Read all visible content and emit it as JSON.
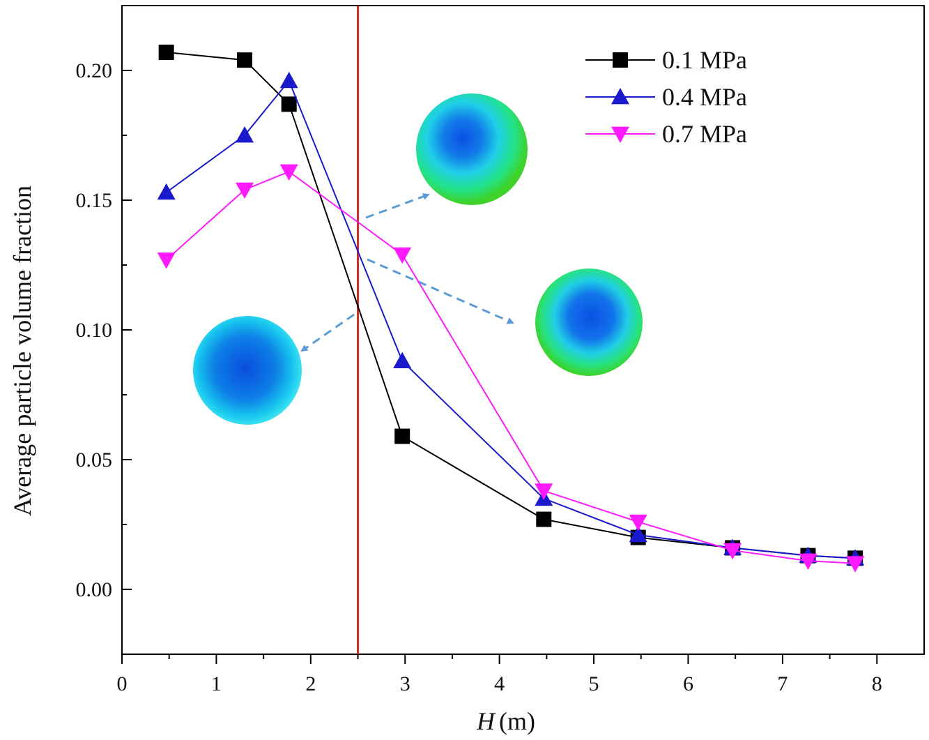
{
  "chart_data": {
    "type": "line",
    "title": "",
    "xlabel": "H",
    "xlabel_unit": "(m)",
    "ylabel": "Average particle volume fraction",
    "xlim": [
      0,
      8.5
    ],
    "ylim": [
      -0.025,
      0.225
    ],
    "x_ticks": [
      "0",
      "1",
      "2",
      "3",
      "4",
      "5",
      "6",
      "7",
      "8"
    ],
    "y_ticks": [
      "0.00",
      "0.05",
      "0.10",
      "0.15",
      "0.20"
    ],
    "grid": false,
    "legend_position": "top-right",
    "vertical_line": {
      "x": 2.5,
      "color": "#d42a2a"
    },
    "x": [
      0.47,
      1.3,
      1.77,
      2.97,
      4.47,
      5.47,
      6.47,
      7.27,
      7.77
    ],
    "series": [
      {
        "name": "0.1 MPa",
        "color": "#000000",
        "marker": "square",
        "values": [
          0.207,
          0.204,
          0.187,
          0.059,
          0.027,
          0.02,
          0.016,
          0.013,
          0.012
        ]
      },
      {
        "name": "0.4 MPa",
        "color": "#1a1acc",
        "marker": "triangle-up",
        "values": [
          0.153,
          0.175,
          0.196,
          0.088,
          0.035,
          0.021,
          0.016,
          0.013,
          0.012
        ]
      },
      {
        "name": "0.7 MPa",
        "color": "#ff1aff",
        "marker": "triangle-down",
        "values": [
          0.127,
          0.154,
          0.161,
          0.129,
          0.038,
          0.026,
          0.015,
          0.011,
          0.01
        ]
      }
    ],
    "insets": [
      {
        "name": "blue-section-image",
        "style": "blue"
      },
      {
        "name": "green-ring-section-image-upper",
        "style": "green"
      },
      {
        "name": "green-ring-section-image-lower",
        "style": "green"
      }
    ]
  }
}
